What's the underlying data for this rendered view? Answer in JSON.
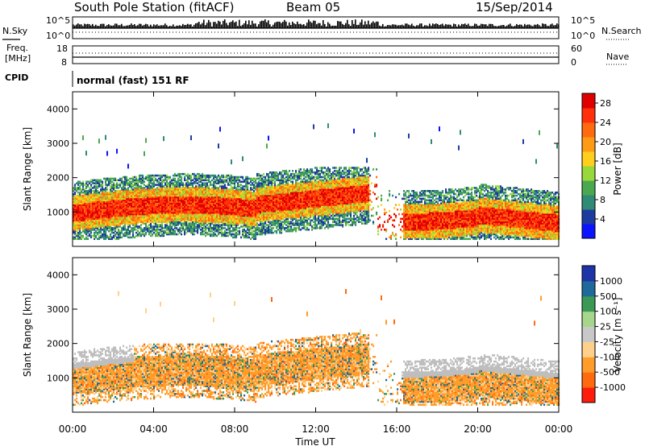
{
  "header": {
    "title": "South Pole Station (fitACF)",
    "beam": "Beam 05",
    "date": "15/Sep/2014"
  },
  "left_labels": {
    "nsky": "N.Sky",
    "freq_line1": "Freq.",
    "freq_line2": "[MHz]",
    "cpid": "CPID"
  },
  "right_labels": {
    "nsearch": "N.Search",
    "nave": "Nave"
  },
  "noise_panel": {
    "left_ticks": [
      "10^5",
      "10^0"
    ],
    "right_ticks": [
      "10^5",
      "10^0"
    ]
  },
  "freq_panel": {
    "left_ticks": [
      "18",
      "8"
    ],
    "right_ticks": [
      "60",
      "0"
    ]
  },
  "cpid_text": "normal (fast) 151 RF",
  "colors": {
    "power_scale": [
      "#0a14ff",
      "#1e3ca0",
      "#2f8a76",
      "#4ca84f",
      "#98d83b",
      "#ffcf1c",
      "#ff9a14",
      "#ff6a0e",
      "#ff300a",
      "#e00000"
    ],
    "velocity_scale": [
      "#1f33a8",
      "#1f6a9a",
      "#3a9a55",
      "#a6d58c",
      "#c8c8c8",
      "#ffd08a",
      "#ff9c2a",
      "#ff6a0e",
      "#ff1c0c"
    ],
    "ground_scatter": "#bebebe"
  },
  "chart_data": [
    {
      "type": "heatmap",
      "name": "Power panel",
      "xlabel": "Time UT",
      "ylabel": "Slant Range [km]",
      "x_range": [
        "00:00",
        "24:00"
      ],
      "ylim": [
        0,
        4500
      ],
      "yticks": [
        "1000",
        "2000",
        "3000",
        "4000"
      ],
      "colorbar": {
        "label": "Power [dB]",
        "range": [
          0,
          30
        ],
        "ticks": [
          "4",
          "8",
          "12",
          "16",
          "20",
          "24",
          "28"
        ]
      }
    },
    {
      "type": "heatmap",
      "name": "Velocity panel",
      "xlabel": "Time UT",
      "ylabel": "Slant Range [km]",
      "x_range": [
        "00:00",
        "24:00"
      ],
      "ylim": [
        0,
        4500
      ],
      "yticks": [
        "1000",
        "2000",
        "3000",
        "4000"
      ],
      "colorbar": {
        "label": "Velocity [m s⁻¹]",
        "ticks": [
          "1000",
          "500",
          "100",
          "25",
          "-25",
          "-100",
          "-500",
          "-1000"
        ]
      }
    }
  ],
  "x_axis": {
    "ticks": [
      "00:00",
      "04:00",
      "08:00",
      "12:00",
      "16:00",
      "20:00",
      "00:00"
    ],
    "label": "Time UT"
  }
}
